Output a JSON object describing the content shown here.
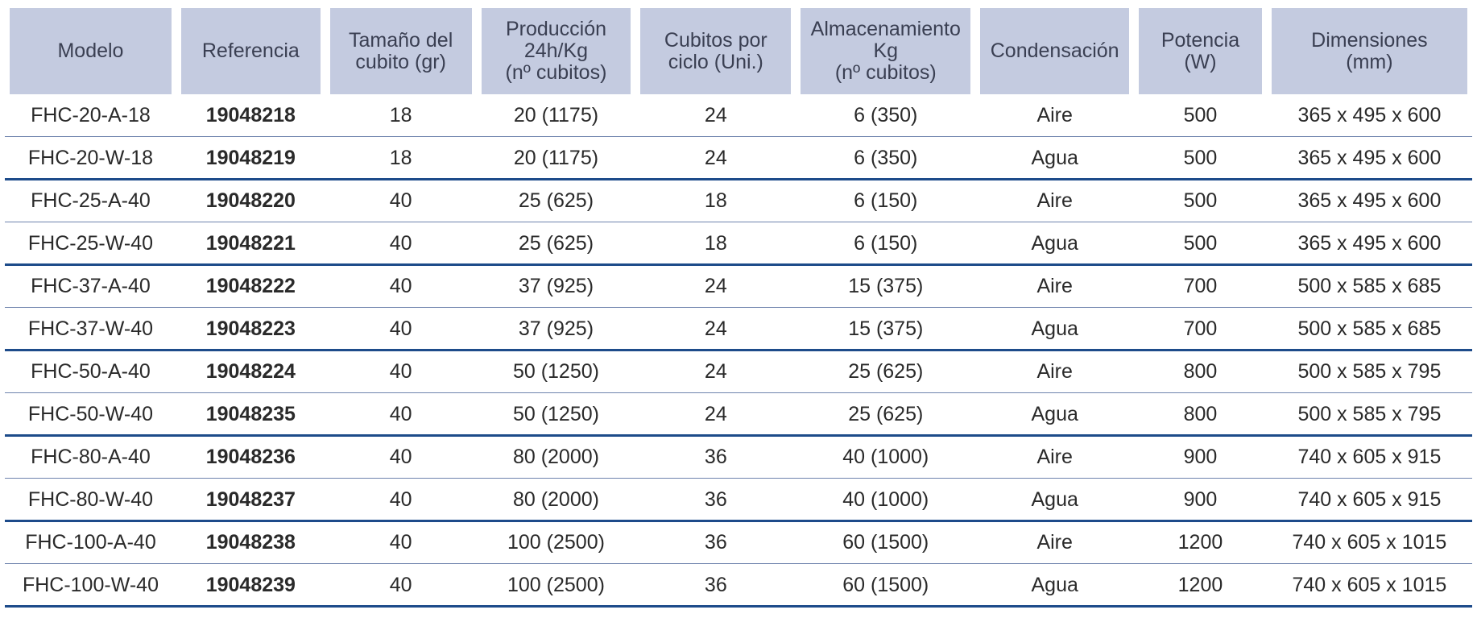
{
  "table": {
    "headers": [
      "Modelo",
      "Referencia",
      "Tamaño del\ncubito (gr)",
      "Producción\n24h/Kg\n(nº cubitos)",
      "Cubitos por\nciclo (Uni.)",
      "Almacenamiento\nKg\n(nº cubitos)",
      "Condensación",
      "Potencia\n(W)",
      "Dimensiones\n(mm)"
    ],
    "rows": [
      {
        "modelo": "FHC-20-A-18",
        "referencia": "19048218",
        "tamano": "18",
        "produccion": "20 (1175)",
        "cubitos": "24",
        "almacenamiento": "6 (350)",
        "condensacion": "Aire",
        "potencia": "500",
        "dimensiones": "365 x 495 x 600"
      },
      {
        "modelo": "FHC-20-W-18",
        "referencia": "19048219",
        "tamano": "18",
        "produccion": "20 (1175)",
        "cubitos": "24",
        "almacenamiento": "6 (350)",
        "condensacion": "Agua",
        "potencia": "500",
        "dimensiones": "365 x 495 x 600"
      },
      {
        "modelo": "FHC-25-A-40",
        "referencia": "19048220",
        "tamano": "40",
        "produccion": "25 (625)",
        "cubitos": "18",
        "almacenamiento": "6 (150)",
        "condensacion": "Aire",
        "potencia": "500",
        "dimensiones": "365 x 495 x 600"
      },
      {
        "modelo": "FHC-25-W-40",
        "referencia": "19048221",
        "tamano": "40",
        "produccion": "25 (625)",
        "cubitos": "18",
        "almacenamiento": "6 (150)",
        "condensacion": "Agua",
        "potencia": "500",
        "dimensiones": "365 x 495 x 600"
      },
      {
        "modelo": "FHC-37-A-40",
        "referencia": "19048222",
        "tamano": "40",
        "produccion": "37 (925)",
        "cubitos": "24",
        "almacenamiento": "15 (375)",
        "condensacion": "Aire",
        "potencia": "700",
        "dimensiones": "500 x 585 x 685"
      },
      {
        "modelo": "FHC-37-W-40",
        "referencia": "19048223",
        "tamano": "40",
        "produccion": "37 (925)",
        "cubitos": "24",
        "almacenamiento": "15 (375)",
        "condensacion": "Agua",
        "potencia": "700",
        "dimensiones": "500 x 585 x 685"
      },
      {
        "modelo": "FHC-50-A-40",
        "referencia": "19048224",
        "tamano": "40",
        "produccion": "50 (1250)",
        "cubitos": "24",
        "almacenamiento": "25 (625)",
        "condensacion": "Aire",
        "potencia": "800",
        "dimensiones": "500 x 585 x 795"
      },
      {
        "modelo": "FHC-50-W-40",
        "referencia": "19048235",
        "tamano": "40",
        "produccion": "50 (1250)",
        "cubitos": "24",
        "almacenamiento": "25 (625)",
        "condensacion": "Agua",
        "potencia": "800",
        "dimensiones": "500 x 585 x 795"
      },
      {
        "modelo": "FHC-80-A-40",
        "referencia": "19048236",
        "tamano": "40",
        "produccion": "80 (2000)",
        "cubitos": "36",
        "almacenamiento": "40 (1000)",
        "condensacion": "Aire",
        "potencia": "900",
        "dimensiones": "740 x 605 x 915"
      },
      {
        "modelo": "FHC-80-W-40",
        "referencia": "19048237",
        "tamano": "40",
        "produccion": "80 (2000)",
        "cubitos": "36",
        "almacenamiento": "40 (1000)",
        "condensacion": "Agua",
        "potencia": "900",
        "dimensiones": "740 x 605 x 915"
      },
      {
        "modelo": "FHC-100-A-40",
        "referencia": "19048238",
        "tamano": "40",
        "produccion": "100 (2500)",
        "cubitos": "36",
        "almacenamiento": "60 (1500)",
        "condensacion": "Aire",
        "potencia": "1200",
        "dimensiones": "740 x 605 x 1015"
      },
      {
        "modelo": "FHC-100-W-40",
        "referencia": "19048239",
        "tamano": "40",
        "produccion": "100 (2500)",
        "cubitos": "36",
        "almacenamiento": "60 (1500)",
        "condensacion": "Agua",
        "potencia": "1200",
        "dimensiones": "740 x 605 x 1015"
      }
    ]
  },
  "colors": {
    "header_bg": "#c4cbe0",
    "group_divider": "#1d4b8a",
    "row_divider": "#6e83ad"
  }
}
